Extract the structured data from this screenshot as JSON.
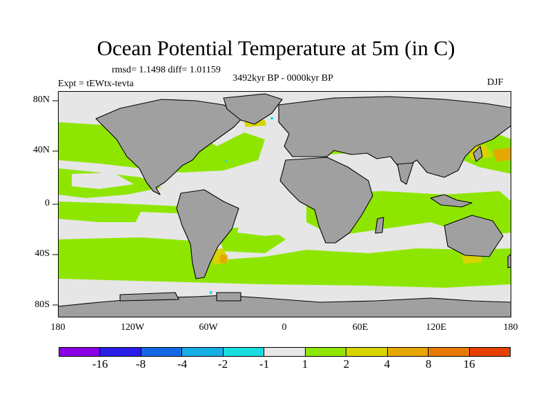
{
  "title": "Ocean Potential Temperature at 5m (in C)",
  "stats_text": "rmsd= 1.1498 diff= 1.01159",
  "center_label": "3492kyr BP - 0000kyr BP",
  "experiment_label": "Expt = tEWtx-tevta",
  "season_label": "DJF",
  "y_axis_labels": [
    "80N",
    "40N",
    "0",
    "40S",
    "80S"
  ],
  "x_axis_labels": [
    "180",
    "120W",
    "60W",
    "0",
    "60E",
    "120E",
    "180"
  ],
  "colorbar": {
    "colors": [
      "#8a00e6",
      "#2a1ee6",
      "#1468e6",
      "#16aee6",
      "#1adce0",
      "#e6e6e6",
      "#8ee600",
      "#d8d400",
      "#e6a800",
      "#e67a00",
      "#e64000"
    ],
    "labels": [
      "-16",
      "-8",
      "-4",
      "-2",
      "-1",
      "1",
      "2",
      "4",
      "8",
      "16"
    ]
  },
  "map_colors": {
    "land": "#a0a0a0",
    "ocean_neutral": "#e6e6e6",
    "warm_2_4": "#8ee600",
    "warm_4_8": "#d8d400",
    "warm_8_16": "#e6a800",
    "cool": "#1adce0"
  }
}
